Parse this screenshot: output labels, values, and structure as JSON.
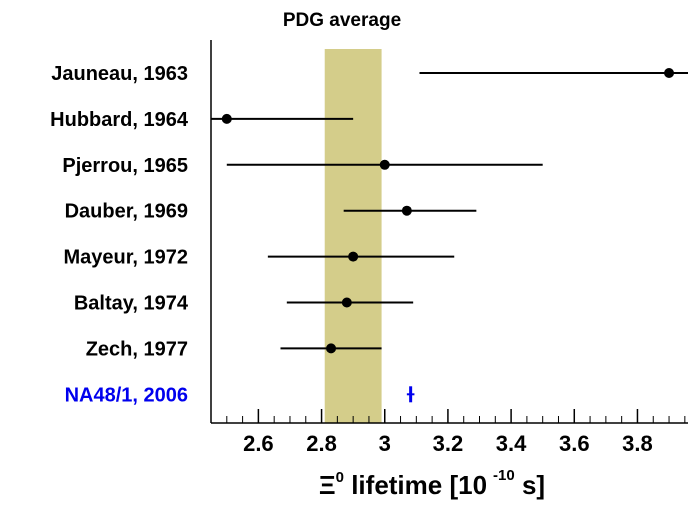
{
  "chart_data": {
    "type": "scatter",
    "title": "PDG average",
    "xlabel": {
      "symbol": "Ξ",
      "superscript": "0",
      "text": " lifetime [10",
      "exponent": "-10",
      "unit": " s]"
    },
    "xlim": [
      2.45,
      3.96
    ],
    "xticks": [
      "2.6",
      "2.8",
      "3",
      "3.2",
      "3.4",
      "3.6",
      "3.8"
    ],
    "band": {
      "label": "PDG average",
      "low": 2.81,
      "high": 2.99,
      "color": "#d4cd8a"
    },
    "measurements": [
      {
        "label": "Jauneau, 1963",
        "value": 3.9,
        "low": 3.11,
        "high": 4.05,
        "color": "#000000"
      },
      {
        "label": "Hubbard, 1964",
        "value": 2.5,
        "low": 2.45,
        "high": 2.9,
        "color": "#000000"
      },
      {
        "label": "Pjerrou, 1965",
        "value": 3.0,
        "low": 2.5,
        "high": 3.5,
        "color": "#000000"
      },
      {
        "label": "Dauber, 1969",
        "value": 3.07,
        "low": 2.87,
        "high": 3.29,
        "color": "#000000"
      },
      {
        "label": "Mayeur, 1972",
        "value": 2.9,
        "low": 2.63,
        "high": 3.22,
        "color": "#000000"
      },
      {
        "label": "Baltay, 1974",
        "value": 2.88,
        "low": 2.69,
        "high": 3.09,
        "color": "#000000"
      },
      {
        "label": "Zech, 1977",
        "value": 2.83,
        "low": 2.67,
        "high": 2.99,
        "color": "#000000"
      },
      {
        "label": "NA48/1, 2006",
        "value": 3.082,
        "low": 3.07,
        "high": 3.094,
        "color": "#0000ee"
      }
    ]
  }
}
